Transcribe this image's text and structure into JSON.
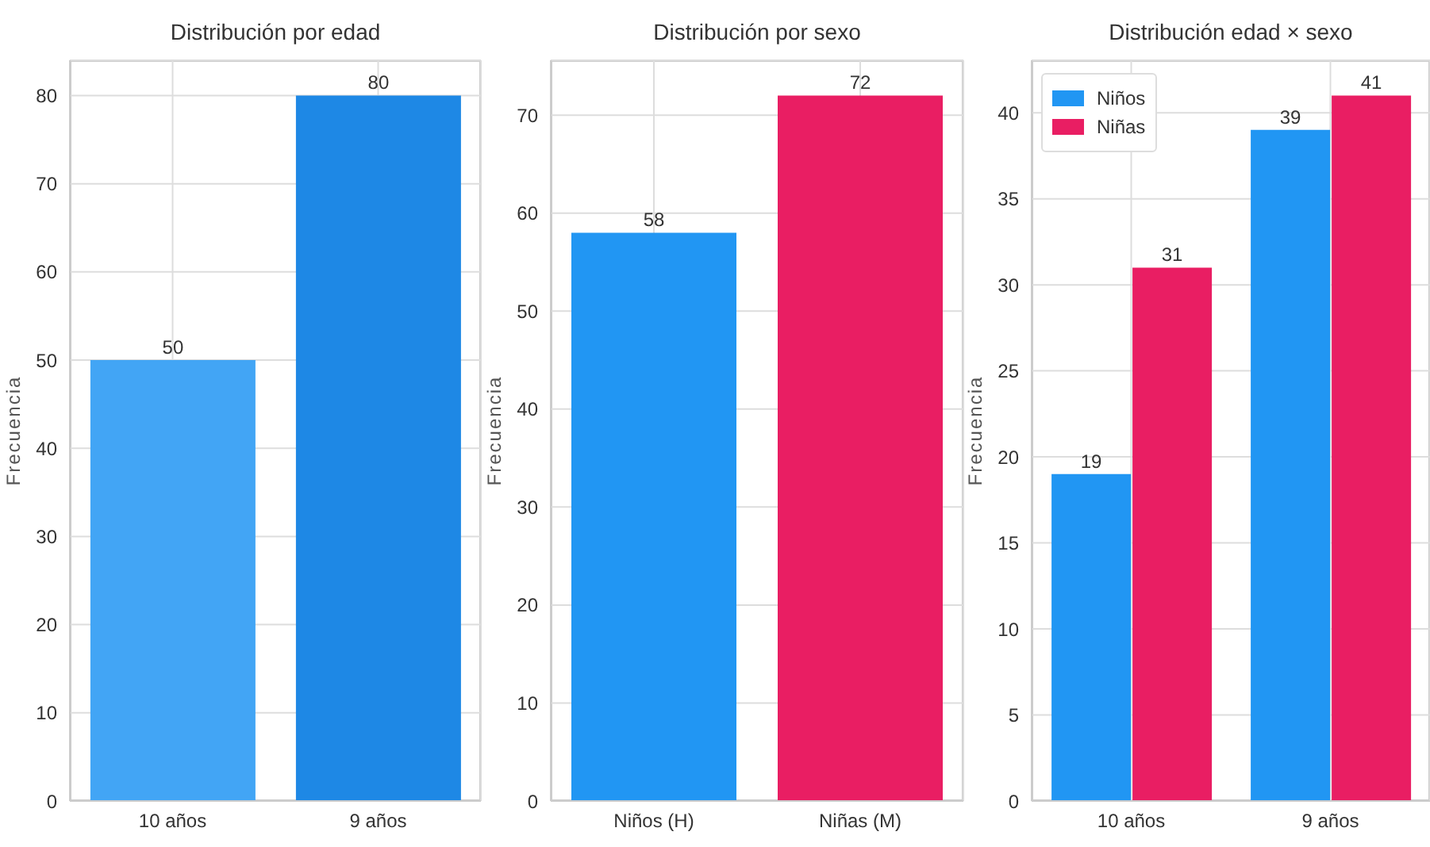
{
  "chart_data": [
    {
      "type": "bar",
      "title": "Distribución por edad",
      "ylabel": "Frecuencia",
      "categories": [
        "10 años",
        "9 años"
      ],
      "values": [
        50,
        80
      ],
      "colors": [
        "#42a5f5",
        "#1e88e5"
      ],
      "ylim": [
        0,
        84
      ],
      "yticks": [
        0,
        10,
        20,
        30,
        40,
        50,
        60,
        70,
        80
      ],
      "grid": true,
      "data_labels": true
    },
    {
      "type": "bar",
      "title": "Distribución por sexo",
      "ylabel": "Frecuencia",
      "categories": [
        "Niños (H)",
        "Niñas (M)"
      ],
      "values": [
        58,
        72
      ],
      "colors": [
        "#2196f3",
        "#e91e63"
      ],
      "ylim": [
        0,
        75.6
      ],
      "yticks": [
        0,
        10,
        20,
        30,
        40,
        50,
        60,
        70
      ],
      "grid": true,
      "data_labels": true
    },
    {
      "type": "bar",
      "title": "Distribución edad × sexo",
      "ylabel": "Frecuencia",
      "categories": [
        "10 años",
        "9 años"
      ],
      "series": [
        {
          "name": "Niños",
          "color": "#2196f3",
          "values": [
            19,
            39
          ]
        },
        {
          "name": "Niñas",
          "color": "#e91e63",
          "values": [
            31,
            41
          ]
        }
      ],
      "ylim": [
        0,
        43.05
      ],
      "yticks": [
        0,
        5,
        10,
        15,
        20,
        25,
        30,
        35,
        40
      ],
      "grid": true,
      "legend": "top left",
      "data_labels": true
    }
  ]
}
